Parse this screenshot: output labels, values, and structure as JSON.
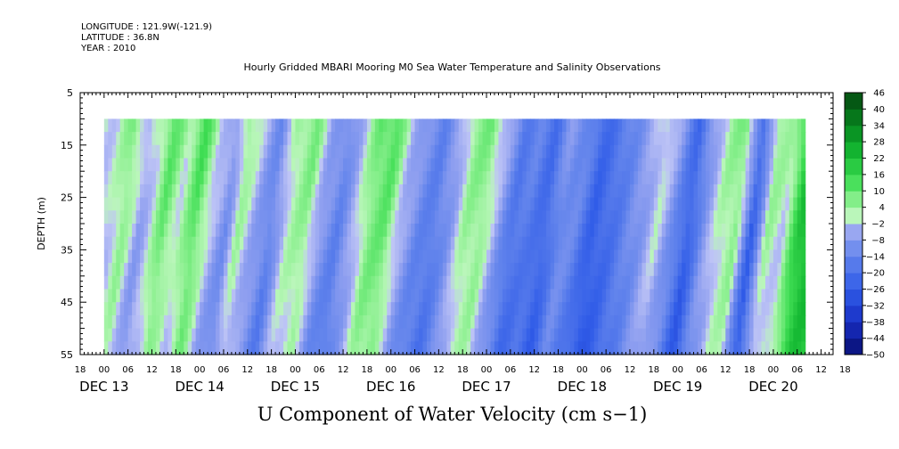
{
  "header": {
    "longitude": "LONGITUDE : 121.9W(-121.9)",
    "latitude": "LATITUDE : 36.8N",
    "year": "YEAR : 2010"
  },
  "chart_data": {
    "type": "heatmap",
    "title": "Hourly Gridded MBARI Mooring M0 Sea Water Temperature and Salinity Observations",
    "xlabel": "U Component of Water Velocity (cm s−1)",
    "ylabel": "DEPTH (m)",
    "x_hours_range": [
      -6,
      183
    ],
    "data_x_range": [
      0,
      176
    ],
    "y_range": [
      5,
      55
    ],
    "data_y_range": [
      10,
      55
    ],
    "y_inverted": true,
    "y_ticks": [
      "5",
      "15",
      "25",
      "35",
      "45",
      "55"
    ],
    "y_tick_values": [
      5,
      15,
      25,
      35,
      45,
      55
    ],
    "x_hour_ticks": [
      "18",
      "00",
      "06",
      "12",
      "18",
      "00",
      "06",
      "12",
      "18",
      "00",
      "06",
      "12",
      "18",
      "00",
      "06",
      "12",
      "18",
      "00",
      "06",
      "12",
      "18",
      "00",
      "06",
      "12",
      "18",
      "00",
      "06",
      "12",
      "18",
      "00",
      "06",
      "12",
      "18"
    ],
    "x_day_labels": [
      {
        "label": "DEC 13",
        "hour": 0
      },
      {
        "label": "DEC 14",
        "hour": 24
      },
      {
        "label": "DEC 15",
        "hour": 48
      },
      {
        "label": "DEC 16",
        "hour": 72
      },
      {
        "label": "DEC 17",
        "hour": 96
      },
      {
        "label": "DEC 18",
        "hour": 120
      },
      {
        "label": "DEC 19",
        "hour": 144
      },
      {
        "label": "DEC 20",
        "hour": 168
      }
    ],
    "colorbar": {
      "levels": [
        -50,
        -44,
        -38,
        -32,
        -26,
        -20,
        -14,
        -8,
        -2,
        4,
        10,
        16,
        22,
        28,
        34,
        40,
        46
      ],
      "labels": [
        "46",
        "40",
        "34",
        "28",
        "22",
        "16",
        "10",
        "4",
        "−2",
        "−8",
        "−14",
        "−20",
        "−26",
        "−32",
        "−38",
        "−44",
        "−50"
      ]
    },
    "column_profile": {
      "hours": [
        0,
        4,
        8,
        11,
        14,
        18,
        22,
        26,
        30,
        33,
        37,
        41,
        45,
        50,
        54,
        58,
        62,
        66,
        70,
        74,
        78,
        82,
        86,
        90,
        94,
        98,
        102,
        106,
        110,
        114,
        118,
        122,
        126,
        130,
        134,
        138,
        142,
        146,
        150,
        154,
        158,
        162,
        166,
        170,
        174,
        176
      ],
      "u": [
        0,
        8,
        -4,
        2,
        12,
        2,
        14,
        0,
        -8,
        6,
        -3,
        -12,
        3,
        8,
        -6,
        -12,
        -2,
        10,
        12,
        -2,
        -10,
        -14,
        -6,
        6,
        8,
        -4,
        -16,
        -14,
        -20,
        -8,
        -12,
        -22,
        -18,
        -12,
        -6,
        2,
        -8,
        -22,
        -6,
        4,
        8,
        -22,
        6,
        2,
        22,
        26
      ]
    },
    "depth_trend_per_hour": [
      0.0,
      -0.04
    ]
  }
}
